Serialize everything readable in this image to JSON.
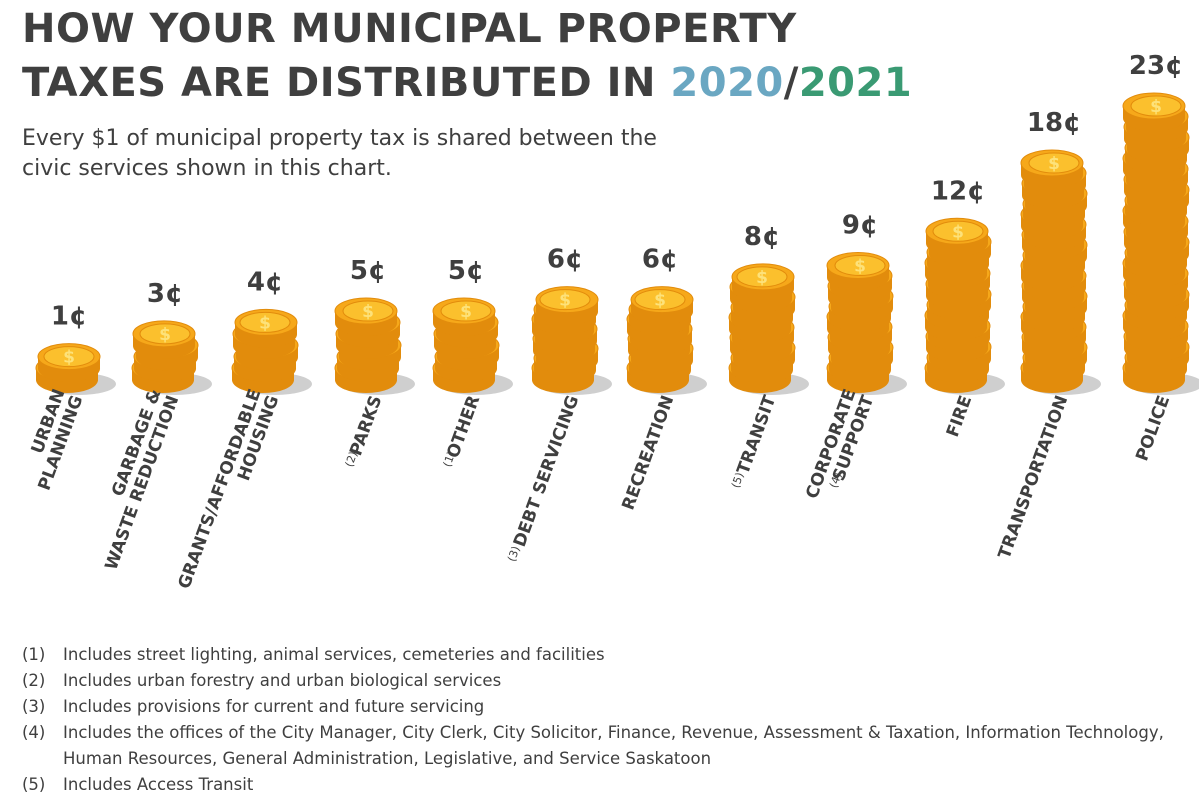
{
  "title": {
    "line1": "HOW YOUR MUNICIPAL PROPERTY",
    "line2_prefix": "TAXES ARE DISTRIBUTED IN ",
    "year1": "2020",
    "sep": "/",
    "year2": "2021"
  },
  "subtitle": "Every $1 of municipal property tax is shared between the civic services shown in this chart.",
  "colors": {
    "text": "#3f3f3f",
    "year1": "#6aa7c2",
    "year2": "#3a9a73",
    "coin_fill": "#f6a81a",
    "coin_edge": "#e28c0c",
    "coin_top": "#fbc02d",
    "coin_symbol": "#fde27a",
    "shadow": "#cfcfcf"
  },
  "chart_data": {
    "type": "bar",
    "style": "stacked coins",
    "title": "HOW YOUR MUNICIPAL PROPERTY TAXES ARE DISTRIBUTED IN 2020/2021",
    "unit": "¢ per $1",
    "categories": [
      {
        "label_lines": [
          "URBAN",
          "PLANNING"
        ],
        "note": ""
      },
      {
        "label_lines": [
          "GARBAGE &",
          "WASTE REDUCTION"
        ],
        "note": ""
      },
      {
        "label_lines": [
          "GRANTS/AFFORDABLE",
          "HOUSING"
        ],
        "note": ""
      },
      {
        "label_lines": [
          "PARKS"
        ],
        "note": "(2)"
      },
      {
        "label_lines": [
          "OTHER"
        ],
        "note": "(1)"
      },
      {
        "label_lines": [
          "DEBT SERVICING"
        ],
        "note": "(3)"
      },
      {
        "label_lines": [
          "RECREATION"
        ],
        "note": ""
      },
      {
        "label_lines": [
          "TRANSIT"
        ],
        "note": "(5)"
      },
      {
        "label_lines": [
          "CORPORATE",
          "SUPPORT"
        ],
        "note": "(4)"
      },
      {
        "label_lines": [
          "FIRE"
        ],
        "note": ""
      },
      {
        "label_lines": [
          "TRANSPORTATION"
        ],
        "note": ""
      },
      {
        "label_lines": [
          "POLICE"
        ],
        "note": ""
      }
    ],
    "values": [
      1,
      3,
      4,
      5,
      5,
      6,
      6,
      8,
      9,
      12,
      18,
      23
    ],
    "value_labels": [
      "1¢",
      "3¢",
      "4¢",
      "5¢",
      "5¢",
      "6¢",
      "6¢",
      "8¢",
      "9¢",
      "12¢",
      "18¢",
      "23¢"
    ],
    "symbol": "$"
  },
  "footnotes": [
    {
      "num": "(1)",
      "text": "Includes street lighting, animal services, cemeteries and facilities"
    },
    {
      "num": "(2)",
      "text": "Includes urban forestry and urban biological services"
    },
    {
      "num": "(3)",
      "text": "Includes provisions for current and future servicing"
    },
    {
      "num": "(4)",
      "text": "Includes the offices of the City Manager, City Clerk, City Solicitor, Finance, Revenue, Assessment & Taxation, Information Technology, Human Resources, General Administration, Legislative, and Service Saskatoon"
    },
    {
      "num": "(5)",
      "text": "Includes Access Transit"
    }
  ]
}
